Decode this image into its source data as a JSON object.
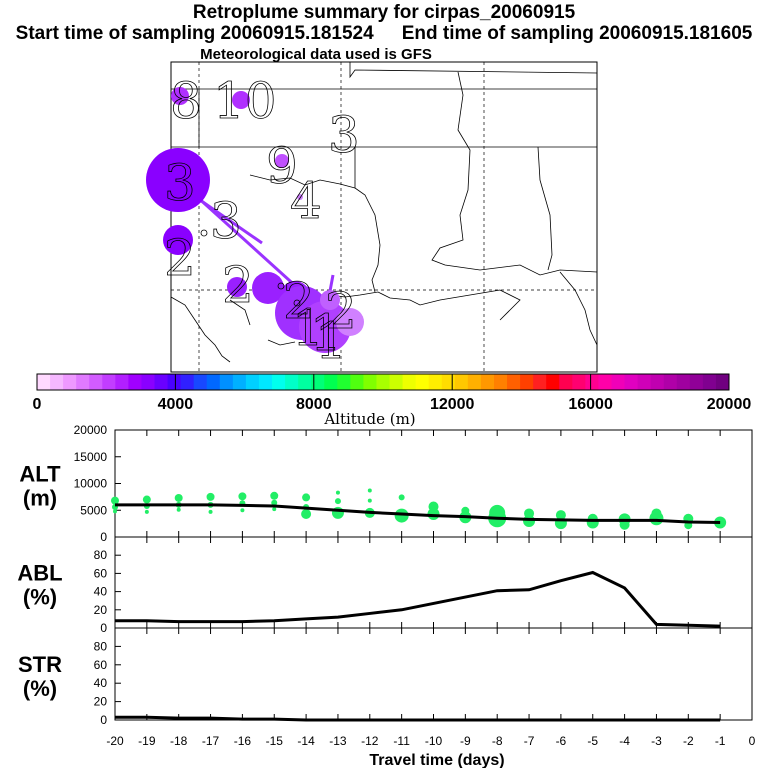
{
  "header": {
    "title": "Retroplume summary for cirpas_20060915",
    "start_label": "Start time of sampling 20060915.181524",
    "end_label": "End time of sampling 20060915.181605",
    "met_label": "Meteorological data used is GFS"
  },
  "map": {
    "digit_labels": [
      "8",
      "10",
      "3",
      "9",
      "4",
      "3",
      "3",
      "2",
      "2",
      "2",
      "2",
      "1",
      "1",
      "1"
    ],
    "trajectory_color": "#9a33ff"
  },
  "colorbar": {
    "ticks": [
      "0",
      "4000",
      "8000",
      "12000",
      "16000",
      "20000"
    ],
    "label": "Altitude (m)",
    "colors": [
      "#ffd9ff",
      "#f5b8ff",
      "#ee99ff",
      "#e07aff",
      "#d25cff",
      "#c23dff",
      "#b21fff",
      "#a000ff",
      "#8a00ff",
      "#6a00ff",
      "#4a00ff",
      "#3020ff",
      "#1848ff",
      "#0068ff",
      "#0090ff",
      "#00b0ff",
      "#00d0ff",
      "#00e8ff",
      "#00ffee",
      "#00ffc8",
      "#00ffa0",
      "#00ff78",
      "#00ff50",
      "#20ff30",
      "#50ff10",
      "#80ff00",
      "#a8ff00",
      "#ccff00",
      "#eeff00",
      "#ffff00",
      "#ffee00",
      "#ffdd00",
      "#ffc800",
      "#ffb000",
      "#ff9800",
      "#ff8000",
      "#ff6000",
      "#ff4000",
      "#ff2020",
      "#ff0000",
      "#ff0050",
      "#ff0070",
      "#ff0090",
      "#ff00a8",
      "#f000b8",
      "#e000c0",
      "#d000b8",
      "#c000b0",
      "#b000a8",
      "#a000a0",
      "#900098",
      "#800090",
      "#700080"
    ]
  },
  "chart_data": [
    {
      "type": "line",
      "name": "ALT",
      "ylabel": "ALT\n(m)",
      "ylabel_lines": [
        "ALT",
        "(m)"
      ],
      "yticks": [
        "0",
        "5000",
        "10000",
        "15000",
        "20000"
      ],
      "ylim": [
        0,
        20000
      ],
      "xlim": [
        -20,
        0
      ],
      "x": [
        -20,
        -19,
        -18,
        -17,
        -16,
        -15,
        -14,
        -13,
        -12,
        -11,
        -10,
        -9,
        -8,
        -7,
        -6,
        -5,
        -4,
        -3,
        -2,
        -1
      ],
      "values": [
        6000,
        6000,
        6000,
        6000,
        5900,
        5800,
        5400,
        5000,
        4600,
        4300,
        4000,
        3800,
        3500,
        3300,
        3200,
        3100,
        3100,
        3100,
        2800,
        2700
      ],
      "scatter": [
        {
          "x": -20,
          "y": 6800,
          "s": 4
        },
        {
          "x": -20,
          "y": 5600,
          "s": 3
        },
        {
          "x": -20,
          "y": 4800,
          "s": 2
        },
        {
          "x": -19,
          "y": 7000,
          "s": 4
        },
        {
          "x": -19,
          "y": 5800,
          "s": 3
        },
        {
          "x": -19,
          "y": 4700,
          "s": 2
        },
        {
          "x": -18,
          "y": 7300,
          "s": 4
        },
        {
          "x": -18,
          "y": 6000,
          "s": 3
        },
        {
          "x": -18,
          "y": 5100,
          "s": 2
        },
        {
          "x": -17,
          "y": 7500,
          "s": 4
        },
        {
          "x": -17,
          "y": 6000,
          "s": 3
        },
        {
          "x": -17,
          "y": 4700,
          "s": 2
        },
        {
          "x": -16,
          "y": 7600,
          "s": 4
        },
        {
          "x": -16,
          "y": 6300,
          "s": 3
        },
        {
          "x": -16,
          "y": 5000,
          "s": 2
        },
        {
          "x": -15,
          "y": 7700,
          "s": 4
        },
        {
          "x": -15,
          "y": 6400,
          "s": 3
        },
        {
          "x": -15,
          "y": 5200,
          "s": 2
        },
        {
          "x": -14,
          "y": 7400,
          "s": 4
        },
        {
          "x": -14,
          "y": 5600,
          "s": 3
        },
        {
          "x": -14,
          "y": 4300,
          "s": 5
        },
        {
          "x": -13,
          "y": 8300,
          "s": 2
        },
        {
          "x": -13,
          "y": 6700,
          "s": 3
        },
        {
          "x": -13,
          "y": 4500,
          "s": 6
        },
        {
          "x": -12,
          "y": 8700,
          "s": 2
        },
        {
          "x": -12,
          "y": 6800,
          "s": 2
        },
        {
          "x": -12,
          "y": 4500,
          "s": 5
        },
        {
          "x": -11,
          "y": 7400,
          "s": 3
        },
        {
          "x": -11,
          "y": 4000,
          "s": 7
        },
        {
          "x": -10,
          "y": 5700,
          "s": 5
        },
        {
          "x": -10,
          "y": 4300,
          "s": 6
        },
        {
          "x": -9,
          "y": 4900,
          "s": 4
        },
        {
          "x": -9,
          "y": 3700,
          "s": 6
        },
        {
          "x": -8,
          "y": 4500,
          "s": 8
        },
        {
          "x": -8,
          "y": 3500,
          "s": 9
        },
        {
          "x": -7,
          "y": 4400,
          "s": 5
        },
        {
          "x": -7,
          "y": 3000,
          "s": 6
        },
        {
          "x": -6,
          "y": 4100,
          "s": 5
        },
        {
          "x": -6,
          "y": 2600,
          "s": 6
        },
        {
          "x": -5,
          "y": 3400,
          "s": 5
        },
        {
          "x": -5,
          "y": 2700,
          "s": 6
        },
        {
          "x": -4,
          "y": 3300,
          "s": 6
        },
        {
          "x": -4,
          "y": 2300,
          "s": 5
        },
        {
          "x": -3,
          "y": 4400,
          "s": 5
        },
        {
          "x": -3,
          "y": 3500,
          "s": 7
        },
        {
          "x": -2,
          "y": 3400,
          "s": 5
        },
        {
          "x": -2,
          "y": 2200,
          "s": 4
        },
        {
          "x": -1,
          "y": 2700,
          "s": 6
        }
      ]
    },
    {
      "type": "line",
      "name": "ABL",
      "ylabel": "ABL\n(%)",
      "ylabel_lines": [
        "ABL",
        "(%)"
      ],
      "yticks": [
        "0",
        "20",
        "40",
        "60",
        "80"
      ],
      "ylim": [
        0,
        100
      ],
      "xlim": [
        -20,
        0
      ],
      "x": [
        -20,
        -19,
        -18,
        -17,
        -16,
        -15,
        -14,
        -13,
        -12,
        -11,
        -10,
        -9,
        -8,
        -7,
        -6,
        -5,
        -4,
        -3,
        -2,
        -1
      ],
      "values": [
        8,
        8,
        7,
        7,
        7,
        8,
        10,
        12,
        16,
        20,
        27,
        34,
        41,
        42,
        52,
        61,
        44,
        4,
        3,
        2
      ]
    },
    {
      "type": "line",
      "name": "STR",
      "ylabel": "STR\n(%)",
      "ylabel_lines": [
        "STR",
        "(%)"
      ],
      "yticks": [
        "0",
        "20",
        "40",
        "60",
        "80"
      ],
      "ylim": [
        0,
        100
      ],
      "xlim": [
        -20,
        0
      ],
      "x": [
        -20,
        -19,
        -18,
        -17,
        -16,
        -15,
        -14,
        -13,
        -12,
        -11,
        -10,
        -9,
        -8,
        -7,
        -6,
        -5,
        -4,
        -3,
        -2,
        -1
      ],
      "values": [
        3,
        3,
        2,
        2,
        1,
        1,
        0,
        0,
        0,
        0,
        0,
        0,
        0,
        0,
        0,
        0,
        0,
        0,
        0,
        0
      ]
    }
  ],
  "xaxis": {
    "ticks": [
      "-20",
      "-19",
      "-18",
      "-17",
      "-16",
      "-15",
      "-14",
      "-13",
      "-12",
      "-11",
      "-10",
      "-9",
      "-8",
      "-7",
      "-6",
      "-5",
      "-4",
      "-3",
      "-2",
      "-1",
      "0"
    ],
    "label": "Travel time (days)"
  },
  "colors": {
    "scatter": "#22ee66",
    "line": "#000000",
    "plume": "#9a33ff",
    "plume_light": "#d080ff",
    "map_line": "#000000"
  }
}
